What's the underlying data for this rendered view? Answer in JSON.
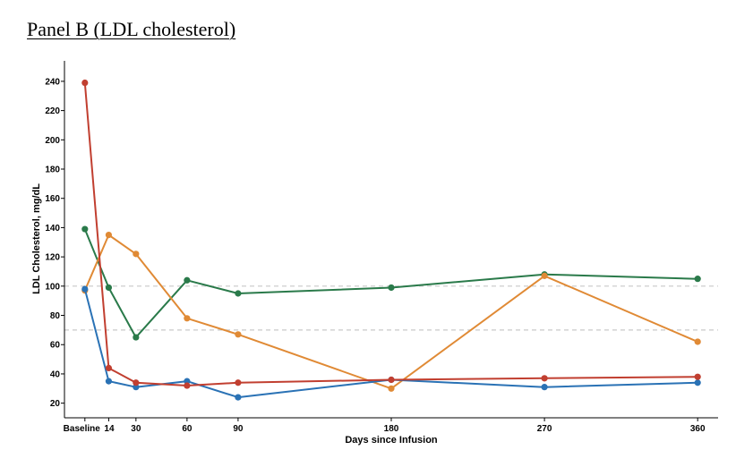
{
  "panel_title": "Panel B (LDL cholesterol)",
  "chart_data": {
    "type": "line",
    "title": "Panel B (LDL cholesterol)",
    "xlabel": "Days since Infusion",
    "ylabel": "LDL Cholesterol, mg/dL",
    "x": [
      0,
      14,
      30,
      60,
      90,
      180,
      270,
      360
    ],
    "x_tick_values": [
      0,
      14,
      30,
      60,
      90,
      180,
      270,
      360
    ],
    "x_tick_labels": [
      "Baseline",
      "14",
      "30",
      "60",
      "90",
      "180",
      "270",
      "360"
    ],
    "xlim": [
      -12,
      372
    ],
    "y_ticks": [
      20,
      40,
      60,
      80,
      100,
      120,
      140,
      160,
      180,
      200,
      220,
      240
    ],
    "ylim": [
      10,
      254
    ],
    "reference_lines": [
      100,
      70
    ],
    "grid": false,
    "series": [
      {
        "color": "#2a7a4a",
        "values": [
          139,
          99,
          65,
          104,
          95,
          99,
          108,
          105
        ]
      },
      {
        "color": "#e08a35",
        "values": [
          97,
          135,
          122,
          78,
          67,
          30,
          107,
          62
        ]
      },
      {
        "color": "#2a72b5",
        "values": [
          98,
          35,
          31,
          35,
          24,
          36,
          31,
          34
        ]
      },
      {
        "color": "#c13f30",
        "values": [
          239,
          44,
          34,
          32,
          34,
          36,
          37,
          38
        ]
      }
    ]
  }
}
